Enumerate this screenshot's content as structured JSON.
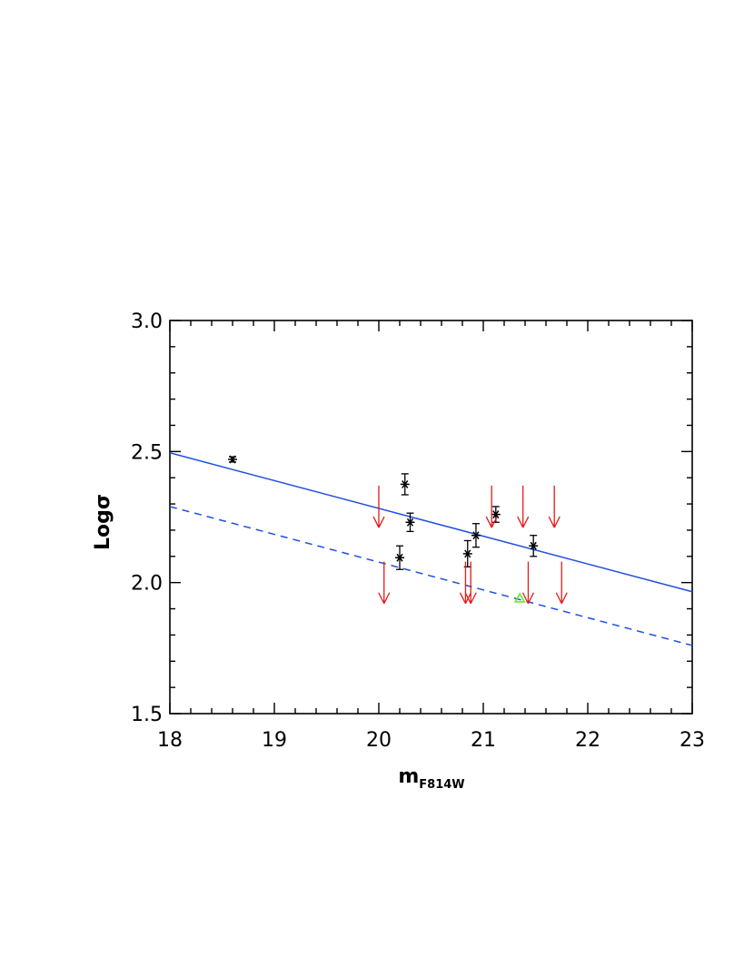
{
  "chart_data": {
    "type": "scatter",
    "xlabel": "m",
    "xlabel_subscript": "F814W",
    "ylabel": "Logσ",
    "xlim": [
      18,
      23
    ],
    "ylim": [
      1.5,
      3.0
    ],
    "xticks": [
      "18",
      "19",
      "20",
      "21",
      "22",
      "23"
    ],
    "yticks": [
      "1.5",
      "2.0",
      "2.5",
      "3.0"
    ],
    "grid": false,
    "legend": "none",
    "colors": {
      "measurements": "#000000",
      "upper_limits": "#e31a1c",
      "fit": "#1f4fe0",
      "special": "#66ee22"
    },
    "measurements": [
      {
        "x": 18.6,
        "y": 2.47,
        "err": 0.01
      },
      {
        "x": 20.2,
        "y": 2.095,
        "err": 0.045
      },
      {
        "x": 20.25,
        "y": 2.375,
        "err": 0.04
      },
      {
        "x": 20.3,
        "y": 2.23,
        "err": 0.035
      },
      {
        "x": 20.85,
        "y": 2.11,
        "err": 0.05
      },
      {
        "x": 20.93,
        "y": 2.18,
        "err": 0.045
      },
      {
        "x": 21.12,
        "y": 2.26,
        "err": 0.03
      },
      {
        "x": 21.48,
        "y": 2.14,
        "err": 0.04
      }
    ],
    "upper_limits": [
      {
        "x": 20.0,
        "y": 2.29
      },
      {
        "x": 20.05,
        "y": 2.0
      },
      {
        "x": 20.83,
        "y": 2.0
      },
      {
        "x": 20.88,
        "y": 2.0
      },
      {
        "x": 21.08,
        "y": 2.29
      },
      {
        "x": 21.38,
        "y": 2.29
      },
      {
        "x": 21.43,
        "y": 2.0
      },
      {
        "x": 21.68,
        "y": 2.29
      },
      {
        "x": 21.75,
        "y": 2.0
      }
    ],
    "special_point": {
      "x": 21.35,
      "y": 1.94,
      "marker": "triangle"
    },
    "lines": [
      {
        "style": "solid",
        "x": [
          18,
          23
        ],
        "y": [
          2.495,
          1.965
        ]
      },
      {
        "style": "dashed",
        "x": [
          18,
          23
        ],
        "y": [
          2.29,
          1.76
        ]
      }
    ]
  }
}
